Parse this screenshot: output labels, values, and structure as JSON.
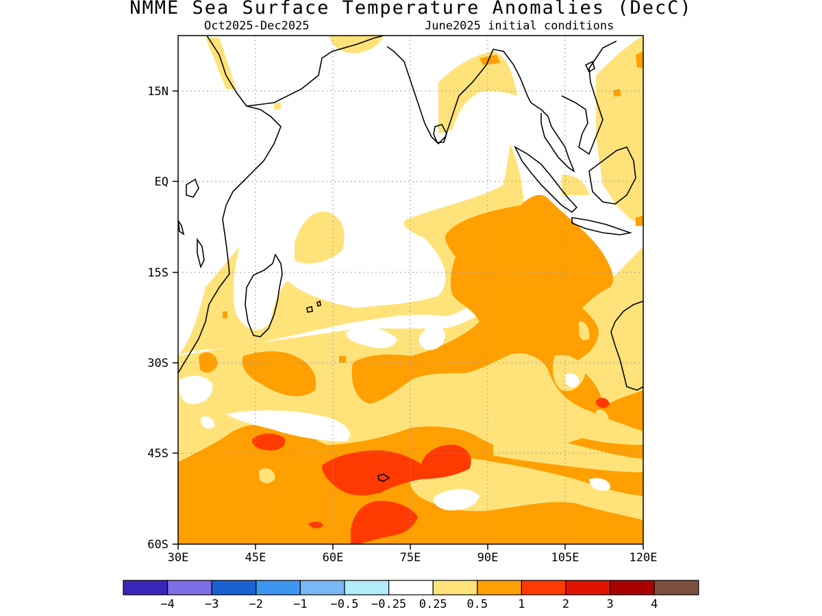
{
  "header": {
    "title": "NMME Sea Surface Temperature Anomalies (DecC)",
    "period": "Oct2025-Dec2025",
    "init": "June2025 initial conditions"
  },
  "map": {
    "lat_labels": [
      "15N",
      "EQ",
      "15S",
      "30S",
      "45S",
      "60S"
    ],
    "lon_labels": [
      "30E",
      "45E",
      "60E",
      "75E",
      "90E",
      "105E",
      "120E"
    ],
    "extent": {
      "lon": [
        30,
        120
      ],
      "lat": [
        -60,
        24
      ]
    }
  },
  "legend": {
    "colors": [
      "#3a26b8",
      "#7d6ee8",
      "#1a62d2",
      "#3d96f2",
      "#79b7f7",
      "#b1ecf8",
      "#ffffff",
      "#ffe37a",
      "#ff9f00",
      "#ff3a00",
      "#e01400",
      "#a80000",
      "#7d4f40"
    ],
    "labels": [
      "-4",
      "-3",
      "-2",
      "-1",
      "-0.5",
      "-0.25",
      "0.25",
      "0.5",
      "1",
      "2",
      "3",
      "4"
    ]
  },
  "colors": {
    "positive_weak": "#ffe37a",
    "positive_moderate": "#ff9f00",
    "positive_strong": "#ff3a00"
  }
}
